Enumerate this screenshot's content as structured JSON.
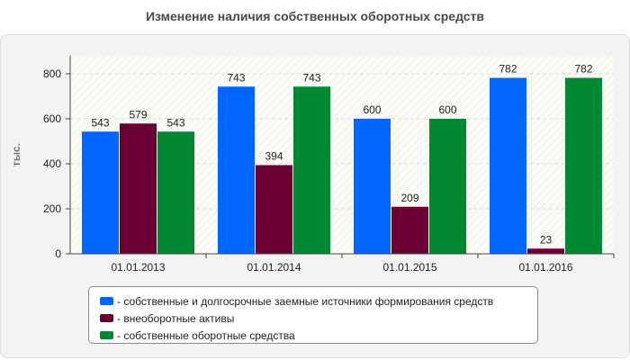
{
  "chart_data": {
    "type": "bar",
    "title": "Изменение наличия собственных оборотных средств",
    "ylabel": "тыс.",
    "xlabel": "",
    "categories": [
      "01.01.2013",
      "01.01.2014",
      "01.01.2015",
      "01.01.2016"
    ],
    "ylim": [
      0,
      880
    ],
    "yticks": [
      0,
      200,
      400,
      600,
      800
    ],
    "grid": true,
    "legend_position": "bottom",
    "series": [
      {
        "name": "- собственные и долгосрочные заемные источники формирования средств",
        "color": "#0066ff",
        "values": [
          543,
          743,
          600,
          782
        ],
        "labels": [
          "543",
          "743",
          "600",
          "782"
        ]
      },
      {
        "name": "- внеоборотные активы",
        "color": "#6a0033",
        "values": [
          579,
          394,
          209,
          23
        ],
        "labels": [
          "579",
          "394",
          "209",
          "23"
        ]
      },
      {
        "name": "- собственные оборотные средства",
        "color": "#008833",
        "values": [
          543,
          743,
          600,
          782
        ],
        "labels": [
          "543",
          "743",
          "600",
          "782"
        ]
      }
    ]
  }
}
